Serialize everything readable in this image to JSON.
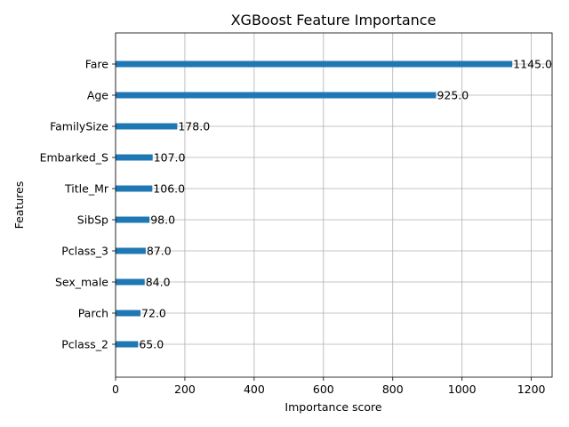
{
  "chart_data": {
    "type": "bar",
    "orientation": "horizontal",
    "title": "XGBoost Feature Importance",
    "xlabel": "Importance score",
    "ylabel": "Features",
    "xlim": [
      0,
      1260
    ],
    "xticks": [
      0,
      200,
      400,
      600,
      800,
      1000,
      1200
    ],
    "grid": true,
    "legend": "none",
    "bar_color": "#1f77b4",
    "categories": [
      "Fare",
      "Age",
      "FamilySize",
      "Embarked_S",
      "Title_Mr",
      "SibSp",
      "Pclass_3",
      "Sex_male",
      "Parch",
      "Pclass_2"
    ],
    "values": [
      1145.0,
      925.0,
      178.0,
      107.0,
      106.0,
      98.0,
      87.0,
      84.0,
      72.0,
      65.0
    ],
    "value_labels": [
      "1145.0",
      "925.0",
      "178.0",
      "107.0",
      "106.0",
      "98.0",
      "87.0",
      "84.0",
      "72.0",
      "65.0"
    ]
  }
}
